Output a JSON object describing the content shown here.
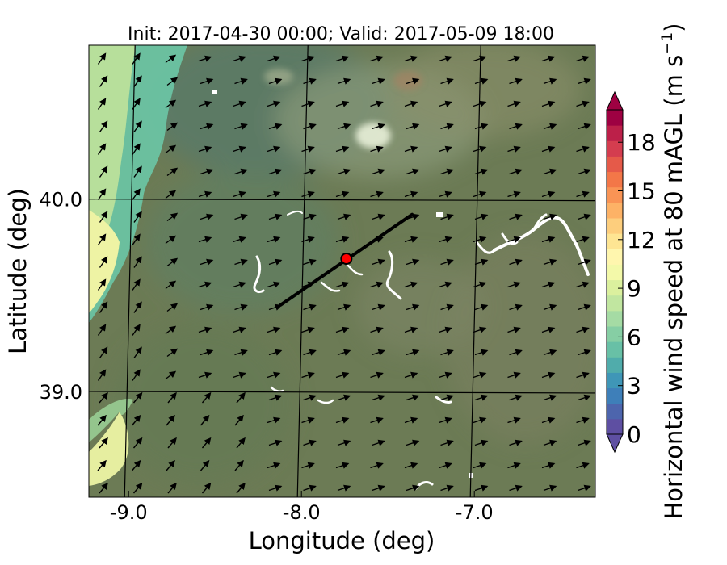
{
  "title": "Init: 2017-04-30 00:00; Valid: 2017-05-09 18:00",
  "xlabel": "Longitude (deg)",
  "ylabel": "Latitude (deg)",
  "x_ticks": [
    {
      "value": -9.0,
      "label": "-9.0"
    },
    {
      "value": -8.0,
      "label": "-8.0"
    },
    {
      "value": -7.0,
      "label": "-7.0"
    }
  ],
  "y_ticks": [
    {
      "value": 40.0,
      "label": "40.0"
    },
    {
      "value": 39.0,
      "label": "39.0"
    }
  ],
  "xlim": [
    -9.23,
    -6.3
  ],
  "ylim": [
    38.45,
    40.8
  ],
  "site_marker": {
    "lon": -7.74,
    "lat": 39.69,
    "color": "#ff0000"
  },
  "transect_line": {
    "start": {
      "lon": -8.12,
      "lat": 39.45
    },
    "end": {
      "lon": -7.36,
      "lat": 39.92
    }
  },
  "colorbar": {
    "label": "Horizontal wind speed at 80 mAGL (m s",
    "label_sup": "−1",
    "label_end": ")",
    "min": 0,
    "max": 20,
    "ticks": [
      {
        "value": 0,
        "label": "0"
      },
      {
        "value": 3,
        "label": "3"
      },
      {
        "value": 6,
        "label": "6"
      },
      {
        "value": 9,
        "label": "9"
      },
      {
        "value": 12,
        "label": "12"
      },
      {
        "value": 15,
        "label": "15"
      },
      {
        "value": 18,
        "label": "18"
      }
    ],
    "colors": [
      "#5e4fa2",
      "#4d65ad",
      "#3e7fb9",
      "#3f96b7",
      "#50acab",
      "#68c0a6",
      "#86cea4",
      "#a5dba4",
      "#c1e6a0",
      "#dbf09e",
      "#f3f9a9",
      "#fff6ae",
      "#fee593",
      "#fdce7d",
      "#fdb266",
      "#f99455",
      "#f37748",
      "#e55a49",
      "#d43d4f",
      "#bc2049",
      "#9e0142"
    ]
  },
  "wind_vectors": {
    "direction": "southwest wind, blowing toward the northeast"
  },
  "colors": {
    "land": "#6c7b55",
    "low_wind": "#b9df9a",
    "calm": "#f0f3a6",
    "water": "#ffffff"
  }
}
